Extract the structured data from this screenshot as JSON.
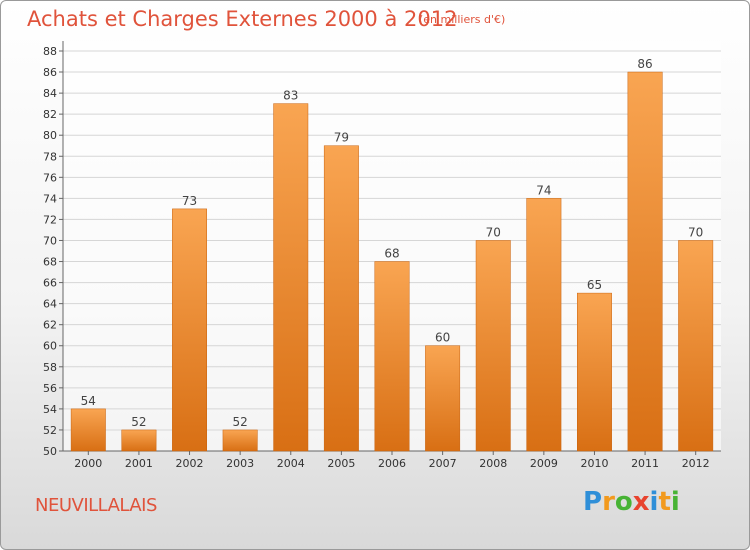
{
  "chart_data": {
    "type": "bar",
    "title": "Achats et Charges Externes 2000 à 2012",
    "subtitle": "(en milliers d'€)",
    "categories": [
      "2000",
      "2001",
      "2002",
      "2003",
      "2004",
      "2005",
      "2006",
      "2007",
      "2008",
      "2009",
      "2010",
      "2011",
      "2012"
    ],
    "values": [
      54,
      52,
      73,
      52,
      83,
      79,
      68,
      60,
      70,
      74,
      65,
      86,
      70
    ],
    "ylim": [
      50,
      88
    ],
    "ytick_step": 2,
    "grid": true,
    "bar_color": "#f08a2c"
  },
  "commune": "NEUVILLALAIS",
  "logo": {
    "letters": [
      "P",
      "r",
      "o",
      "x",
      "i",
      "t",
      "i"
    ],
    "colors": [
      "#2f8fd8",
      "#f29a1e",
      "#47b335",
      "#e8432e",
      "#2f8fd8",
      "#f29a1e",
      "#47b335"
    ]
  }
}
